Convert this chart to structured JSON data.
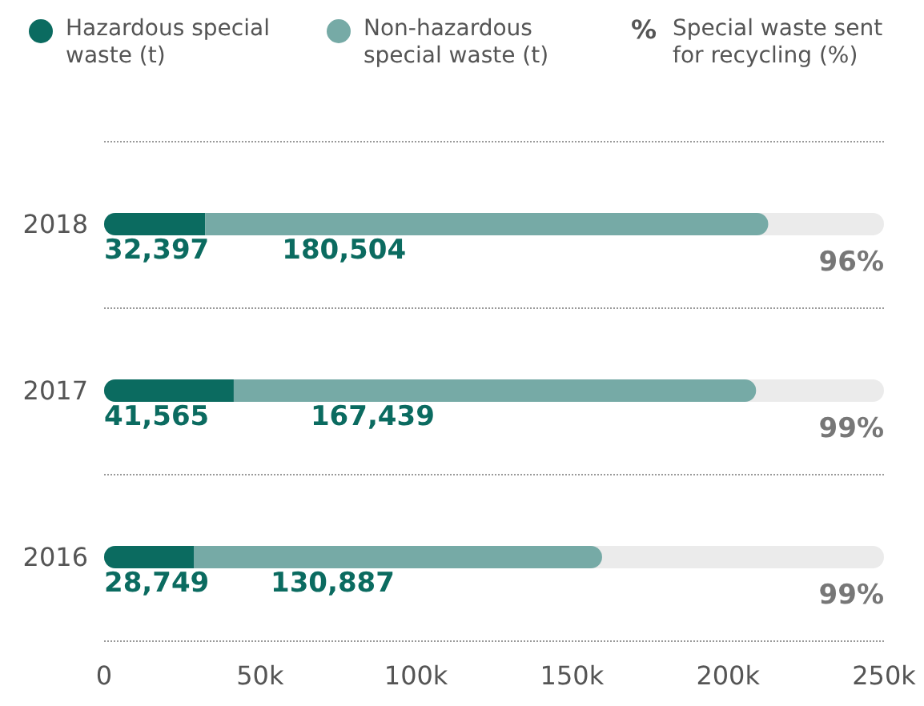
{
  "chart_data": {
    "type": "bar",
    "orientation": "horizontal",
    "stacked": true,
    "categories": [
      "2018",
      "2017",
      "2016"
    ],
    "series": [
      {
        "name": "Hazardous special waste (t)",
        "color": "#0b6b60",
        "values": [
          32397,
          41565,
          28749
        ],
        "value_labels": [
          "32,397",
          "41,565",
          "28,749"
        ]
      },
      {
        "name": "Non-hazardous special waste (t)",
        "color": "#76aaa6",
        "values": [
          180504,
          167439,
          130887
        ],
        "value_labels": [
          "180,504",
          "167,439",
          "130,887"
        ]
      }
    ],
    "xlim": [
      0,
      250000
    ],
    "xticks": [
      0,
      {
        "value": 50000,
        "label": "50k"
      },
      {
        "value": 100000,
        "label": "100k"
      },
      {
        "value": 150000,
        "label": "150k"
      },
      {
        "value": 200000,
        "label": "200k"
      },
      {
        "value": 250000,
        "label": "250k"
      }
    ],
    "grid": "y",
    "line_style": "dotted",
    "legend": "top",
    "annotations": [
      "%",
      "Special waste sent for recycling (%)",
      "96%",
      "99%",
      "99%"
    ]
  }
}
